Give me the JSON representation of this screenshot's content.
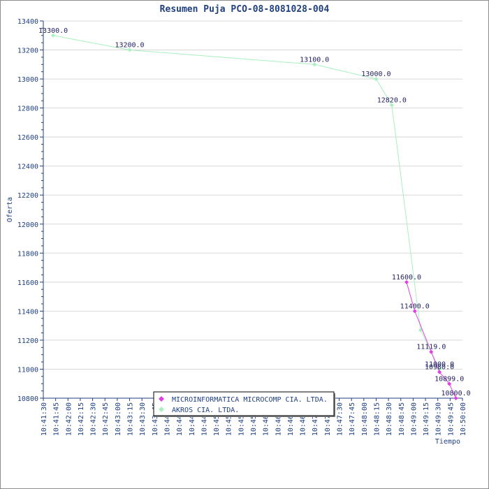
{
  "chart_data": {
    "type": "line",
    "title": "Resumen Puja PCO-08-8081028-004",
    "xlabel": "Tiempo",
    "ylabel": "Oferta",
    "ylim": [
      10800,
      13400
    ],
    "xlim": [
      "10:41:30",
      "10:50:00"
    ],
    "grid": true,
    "y_ticks": [
      "10800",
      "11000",
      "11200",
      "11400",
      "11600",
      "11800",
      "12000",
      "12200",
      "12400",
      "12600",
      "12800",
      "13000",
      "13200",
      "13400"
    ],
    "x_ticks": [
      "10:41:30",
      "10:41:45",
      "10:42:00",
      "10:42:15",
      "10:42:30",
      "10:42:45",
      "10:43:00",
      "10:43:15",
      "10:43:30",
      "10:43:45",
      "10:44:00",
      "10:44:15",
      "10:44:30",
      "10:44:45",
      "10:45:00",
      "10:45:15",
      "10:45:30",
      "10:45:45",
      "10:46:00",
      "10:46:15",
      "10:46:30",
      "10:46:45",
      "10:47:00",
      "10:47:15",
      "10:47:30",
      "10:47:45",
      "10:48:00",
      "10:48:15",
      "10:48:30",
      "10:48:45",
      "10:49:00",
      "10:49:15",
      "10:49:30",
      "10:49:45",
      "10:50:00"
    ],
    "legend_position": "bottom-center",
    "series": [
      {
        "name": "MICROINFORMATICA MICROCOMP CIA. LTDA.",
        "color": "#e040e0",
        "points": [
          {
            "x": "10:48:52",
            "y": 11600,
            "label": "11600.0"
          },
          {
            "x": "10:49:02",
            "y": 11400,
            "label": "11400.0"
          },
          {
            "x": "10:49:22",
            "y": 11119,
            "label": "11119.0"
          },
          {
            "x": "10:49:32",
            "y": 10980,
            "label": "10980.0"
          },
          {
            "x": "10:49:44",
            "y": 10899,
            "label": "10899.0"
          },
          {
            "x": "10:49:52",
            "y": 10800,
            "label": "10800.0"
          }
        ]
      },
      {
        "name": "AKROS CIA. LTDA.",
        "color": "#a8f0c0",
        "points": [
          {
            "x": "10:41:42",
            "y": 13300,
            "label": "13300.0"
          },
          {
            "x": "10:43:15",
            "y": 13200,
            "label": "13200.0"
          },
          {
            "x": "10:47:00",
            "y": 13100,
            "label": "13100.0"
          },
          {
            "x": "10:48:15",
            "y": 13000,
            "label": "13000.0"
          },
          {
            "x": "10:48:34",
            "y": 12820,
            "label": "12820.0"
          },
          {
            "x": "10:49:09",
            "y": 11270,
            "label": ""
          },
          {
            "x": "10:49:32",
            "y": 11000,
            "label": "11000.0"
          }
        ]
      }
    ]
  }
}
